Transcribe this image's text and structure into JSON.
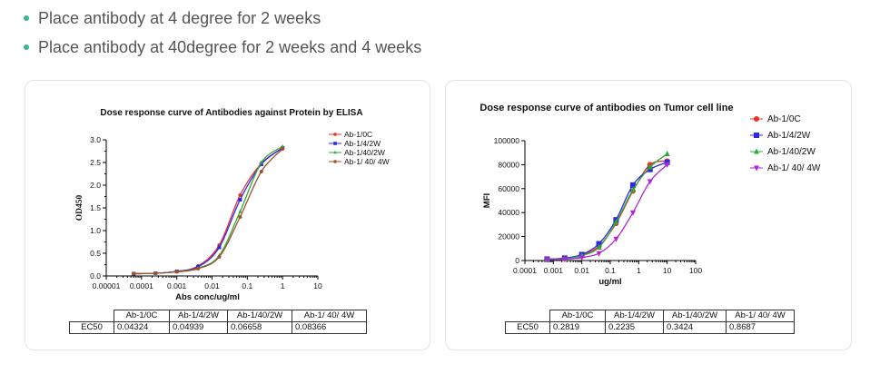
{
  "bullets": [
    "Place antibody at 4 degree for 2 weeks",
    "Place antibody at 40degree for 2 weeks and 4 weeks"
  ],
  "colors": {
    "bullet": "#3bb58a"
  },
  "chart_data": [
    {
      "type": "line",
      "title": "Dose response curve of Antibodies against Protein by ELISA",
      "xlabel": "Abs conc/ug/ml",
      "ylabel": "OD450",
      "xscale": "log",
      "xlim": [
        1e-05,
        10
      ],
      "ylim": [
        0,
        3.0
      ],
      "xticks": [
        "0.00001",
        "0.0001",
        "0.001",
        "0.01",
        "0.1",
        "1",
        "10"
      ],
      "yticks": [
        "0.0",
        "0.5",
        "1.0",
        "1.5",
        "2.0",
        "2.5",
        "3.0"
      ],
      "x": [
        6e-05,
        0.00025,
        0.001,
        0.004,
        0.016,
        0.0625,
        0.25,
        1
      ],
      "legend_position": "top-right",
      "series": [
        {
          "name": "Ab-1/0C",
          "color": "#e8302b",
          "marker": "circle",
          "values": [
            0.05,
            0.06,
            0.1,
            0.22,
            0.68,
            1.78,
            2.48,
            2.82
          ]
        },
        {
          "name": "Ab-1/4/2W",
          "color": "#2a2ae0",
          "marker": "square",
          "values": [
            0.05,
            0.06,
            0.1,
            0.2,
            0.63,
            1.68,
            2.46,
            2.82
          ]
        },
        {
          "name": "Ab-1/40/2W",
          "color": "#2eaa3a",
          "marker": "triangle",
          "values": [
            0.05,
            0.06,
            0.09,
            0.17,
            0.45,
            1.42,
            2.5,
            2.85
          ]
        },
        {
          "name": "Ab-1/ 40/ 4W",
          "color": "#a0522d",
          "marker": "circle",
          "values": [
            0.05,
            0.06,
            0.09,
            0.16,
            0.42,
            1.3,
            2.3,
            2.8
          ]
        }
      ],
      "ec50_table": {
        "row_label": "EC50",
        "headers": [
          "Ab-1/0C",
          "Ab-1/4/2W",
          "Ab-1/40/2W",
          "Ab-1/ 40/ 4W"
        ],
        "values": [
          "0.04324",
          "0.04939",
          "0.06658",
          "0.08366"
        ]
      }
    },
    {
      "type": "line",
      "title": "Dose response curve of antibodies on Tumor cell line",
      "xlabel": "ug/ml",
      "ylabel": "MFI",
      "xscale": "log",
      "xlim": [
        0.0001,
        100
      ],
      "ylim": [
        0,
        100000
      ],
      "xticks": [
        "0.0001",
        "0.001",
        "0.01",
        "0.1",
        "1",
        "10",
        "100"
      ],
      "yticks": [
        "0",
        "20000",
        "40000",
        "60000",
        "80000",
        "100000"
      ],
      "x": [
        0.0006,
        0.0025,
        0.01,
        0.04,
        0.16,
        0.625,
        2.5,
        10
      ],
      "legend_position": "top-right",
      "series": [
        {
          "name": "Ab-1/0C",
          "color": "#e8302b",
          "marker": "circle",
          "values": [
            1000,
            1500,
            4500,
            12000,
            31000,
            58000,
            80000,
            83000
          ]
        },
        {
          "name": "Ab-1/4/2W",
          "color": "#2a2ae0",
          "marker": "square",
          "values": [
            1200,
            2000,
            5000,
            14000,
            34000,
            63000,
            76000,
            82000
          ]
        },
        {
          "name": "Ab-1/40/2W",
          "color": "#2eaa3a",
          "marker": "triangle",
          "values": [
            1000,
            1500,
            4000,
            11000,
            32000,
            59000,
            78000,
            89000
          ]
        },
        {
          "name": "Ab-1/ 40/ 4W",
          "color": "#b324d6",
          "marker": "triangle-down",
          "values": [
            800,
            1000,
            2500,
            6000,
            18000,
            40000,
            66000,
            80000
          ]
        }
      ],
      "ec50_table": {
        "row_label": "EC50",
        "headers": [
          "Ab-1/0C",
          "Ab-1/4/2W",
          "Ab-1/40/2W",
          "Ab-1/ 40/ 4W"
        ],
        "values": [
          "0.2819",
          "0.2235",
          "0.3424",
          "0.8687"
        ]
      }
    }
  ]
}
